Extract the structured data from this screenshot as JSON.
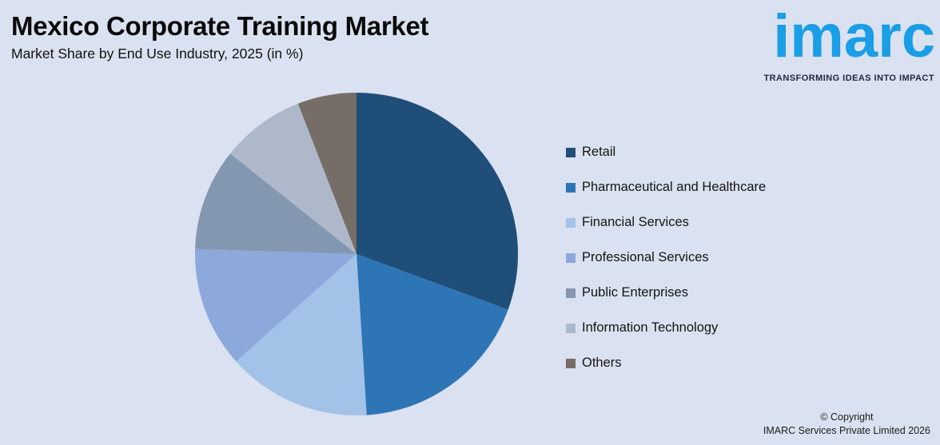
{
  "theme": {
    "background": "#dae1f0",
    "text_color": "#141414"
  },
  "header": {
    "title": "Mexico Corporate Training Market",
    "subtitle": "Market Share by End Use Industry, 2025 (in %)"
  },
  "logo": {
    "text": "imarc",
    "tagline": "TRANSFORMING IDEAS INTO IMPACT",
    "brand_color": "#1a9ee5",
    "tagline_color": "#1d2940"
  },
  "chart_data": {
    "type": "pie",
    "title": "Mexico Corporate Training Market",
    "subtitle": "Market Share by End Use Industry, 2025 (in %)",
    "categories": [
      "Retail",
      "Pharmaceutical and Healthcare",
      "Financial Services",
      "Professional Services",
      "Public Enterprises",
      "Information Technology",
      "Others"
    ],
    "values": [
      30.6,
      18.4,
      14.4,
      12.1,
      10.2,
      8.4,
      5.9
    ],
    "values_estimated_from_angles": true,
    "colors": [
      "#1f4e79",
      "#2e75b6",
      "#a3c2e8",
      "#8da9dc",
      "#8497b0",
      "#adb9ca",
      "#766e66"
    ],
    "start_angle_deg": 0,
    "direction": "clockwise",
    "legend_position": "right",
    "data_labels": false
  },
  "footer": {
    "copyright_line1": "© Copyright",
    "copyright_line2": "IMARC Services Private Limited 2026"
  }
}
